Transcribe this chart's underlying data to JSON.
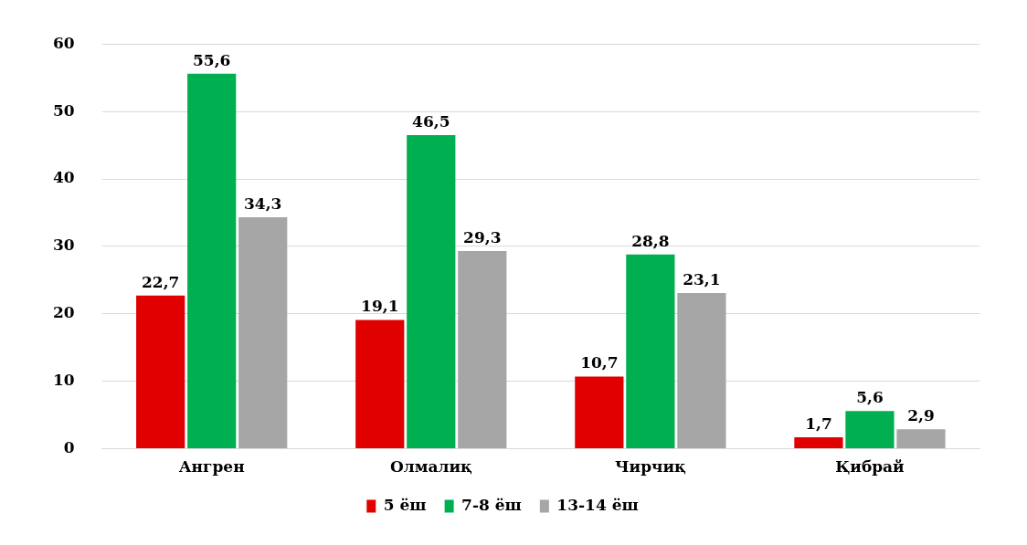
{
  "chart_data": {
    "type": "bar",
    "categories": [
      "Ангрен",
      "Олмалиқ",
      "Чирчиқ",
      "Қибрай"
    ],
    "series": [
      {
        "name": "5 ёш",
        "color": "#e00000",
        "values": [
          22.7,
          19.1,
          10.7,
          1.7
        ],
        "value_labels": [
          "22,7",
          "19,1",
          "10,7",
          "1,7"
        ]
      },
      {
        "name": "7-8 ёш",
        "color": "#00b050",
        "values": [
          55.6,
          46.5,
          28.8,
          5.6
        ],
        "value_labels": [
          "55,6",
          "46,5",
          "28,8",
          "5,6"
        ]
      },
      {
        "name": "13-14 ёш",
        "color": "#a6a6a6",
        "values": [
          34.3,
          29.3,
          23.1,
          2.9
        ],
        "value_labels": [
          "34,3",
          "29,3",
          "23,1",
          "2,9"
        ]
      }
    ],
    "ylim": [
      0,
      60
    ],
    "yticks": [
      0,
      10,
      20,
      30,
      40,
      50,
      60
    ],
    "grid": "y",
    "legend": "bottom"
  }
}
